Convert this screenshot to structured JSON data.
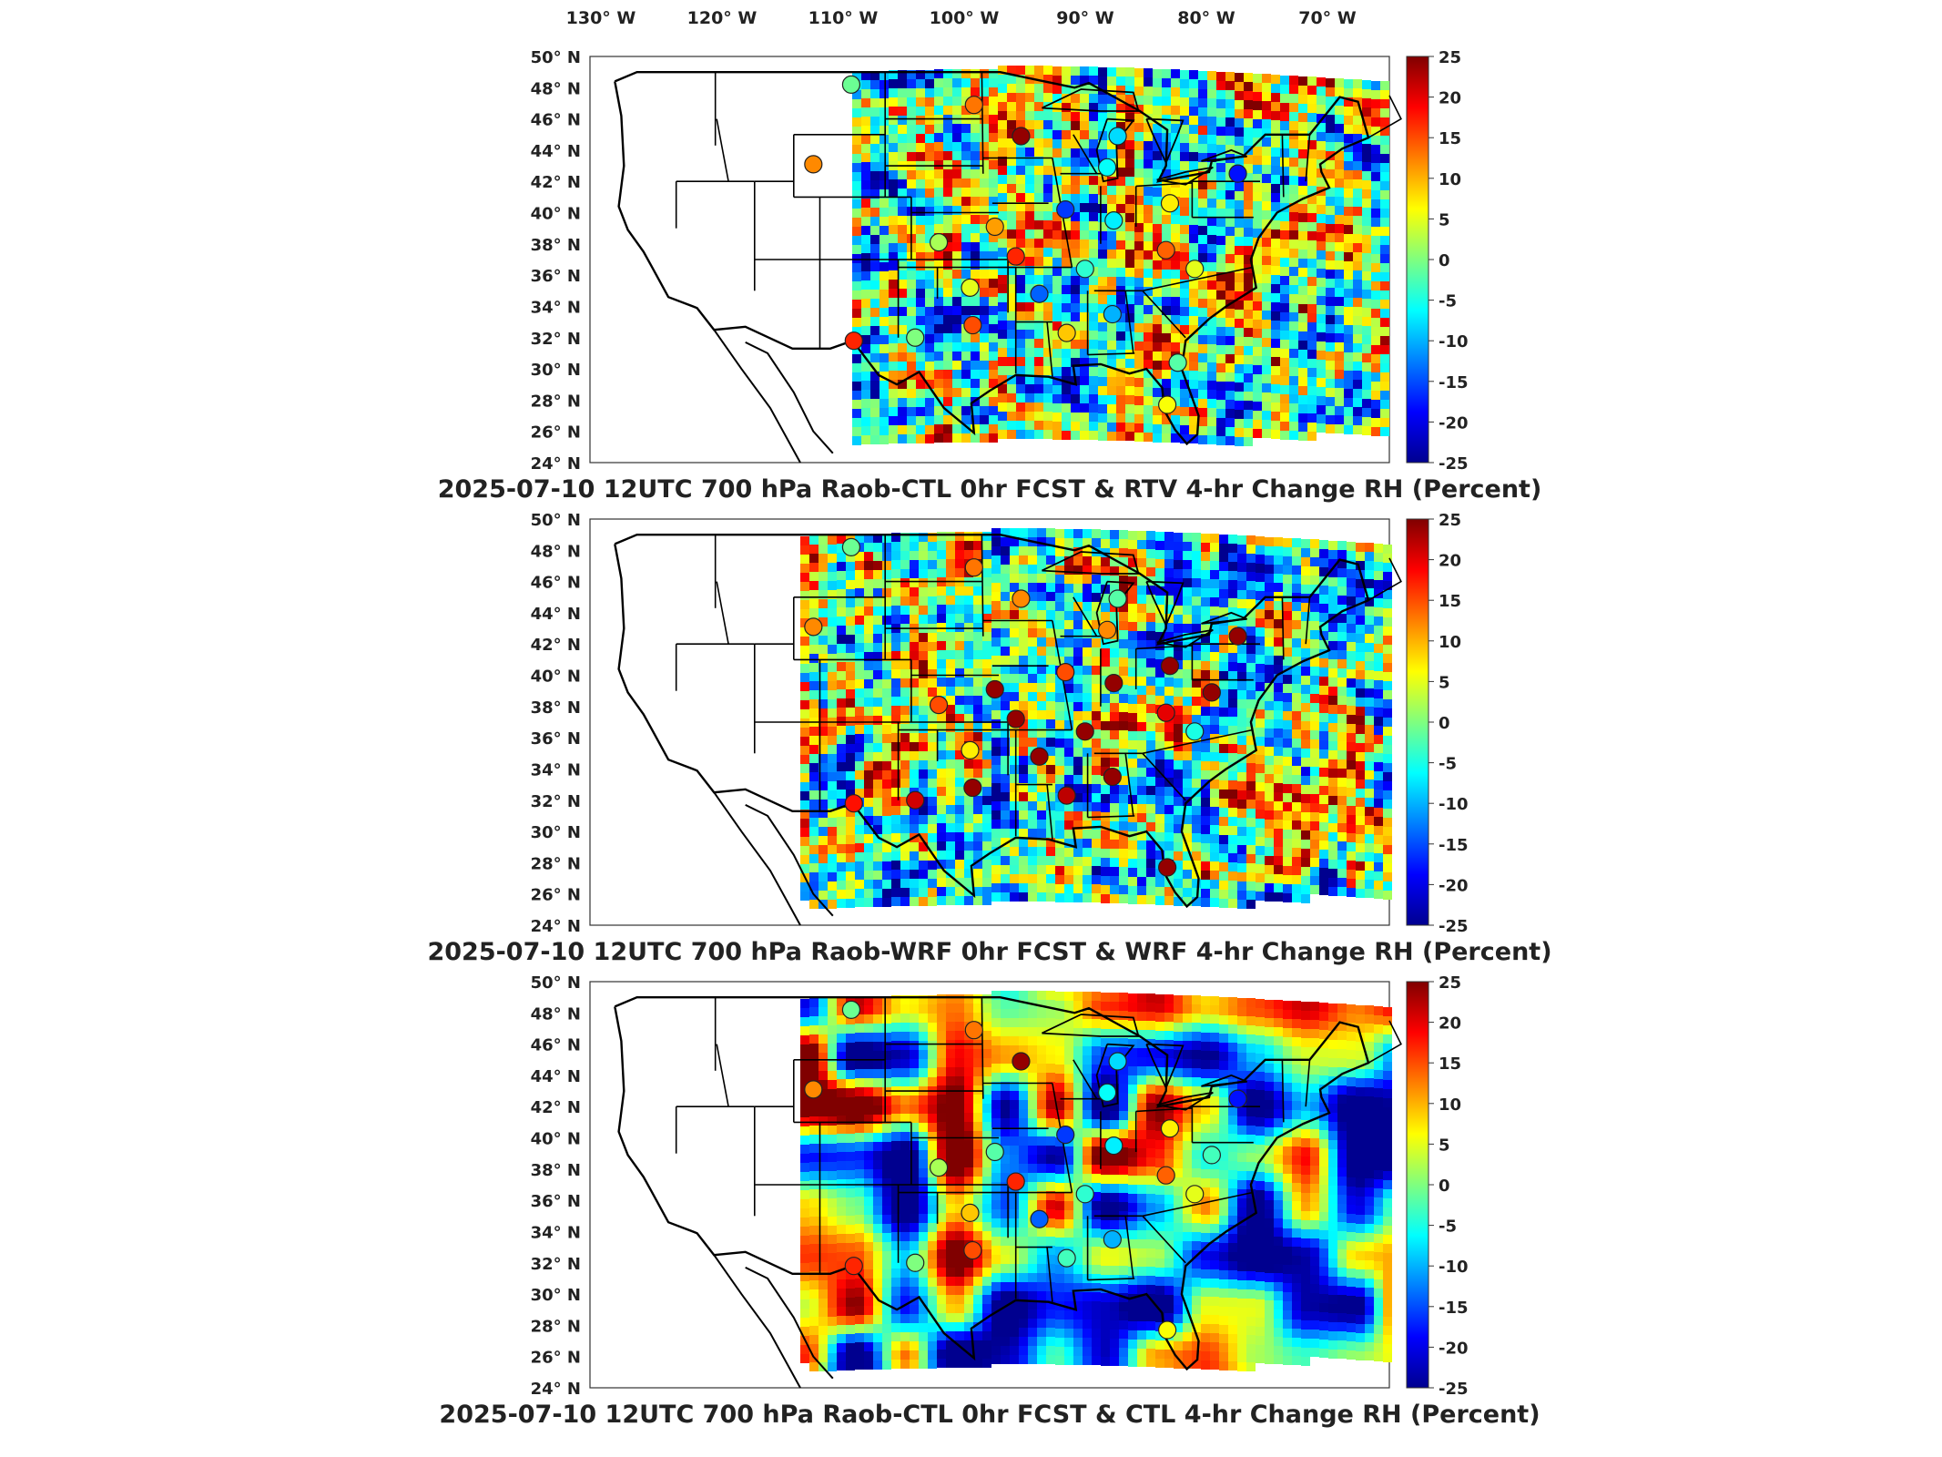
{
  "longitude_labels": [
    "130° W",
    "120° W",
    "110° W",
    "100° W",
    "90° W",
    "80° W",
    "70° W"
  ],
  "latitude_labels": [
    "50° N",
    "48° N",
    "46° N",
    "44° N",
    "42° N",
    "40° N",
    "38° N",
    "36° N",
    "34° N",
    "32° N",
    "30° N",
    "28° N",
    "26° N",
    "24° N"
  ],
  "colorbar_ticks": [
    "25",
    "20",
    "15",
    "10",
    "5",
    "0",
    "-5",
    "-10",
    "-15",
    "-20",
    "-25"
  ],
  "colorbar_range": [
    -25,
    25
  ],
  "colorbar_colors": [
    "#00008f",
    "#0000ff",
    "#007fff",
    "#00ffff",
    "#7fff7f",
    "#ffff00",
    "#ff7f00",
    "#ff0000",
    "#800000"
  ],
  "panels": [
    {
      "title": "2025-07-10 12UTC 700 hPa Raob-CTL 0hr FCST & RTV 4-hr Change RH (Percent)",
      "stations": [
        {
          "lon": -106.6,
          "lat": 48.2,
          "value": -1
        },
        {
          "lon": -97.2,
          "lat": 46.9,
          "value": 13
        },
        {
          "lon": -109.5,
          "lat": 43.1,
          "value": 12
        },
        {
          "lon": -93.6,
          "lat": 44.9,
          "value": 24
        },
        {
          "lon": -86.2,
          "lat": 44.9,
          "value": -8
        },
        {
          "lon": -87.0,
          "lat": 42.9,
          "value": -6
        },
        {
          "lon": -90.2,
          "lat": 40.2,
          "value": -16
        },
        {
          "lon": -86.5,
          "lat": 39.5,
          "value": -7
        },
        {
          "lon": -82.2,
          "lat": 40.6,
          "value": 7
        },
        {
          "lon": -77.0,
          "lat": 42.5,
          "value": -18
        },
        {
          "lon": -95.6,
          "lat": 39.1,
          "value": 11
        },
        {
          "lon": -99.9,
          "lat": 38.1,
          "value": 2
        },
        {
          "lon": -94.0,
          "lat": 37.2,
          "value": 17
        },
        {
          "lon": -88.7,
          "lat": 36.4,
          "value": -4
        },
        {
          "lon": -97.5,
          "lat": 35.2,
          "value": 5
        },
        {
          "lon": -92.2,
          "lat": 34.8,
          "value": -14
        },
        {
          "lon": -86.6,
          "lat": 33.5,
          "value": -10
        },
        {
          "lon": -90.1,
          "lat": 32.3,
          "value": 9
        },
        {
          "lon": -97.3,
          "lat": 32.8,
          "value": 15
        },
        {
          "lon": -101.7,
          "lat": 32.0,
          "value": 0
        },
        {
          "lon": -106.4,
          "lat": 31.8,
          "value": 17
        },
        {
          "lon": -82.5,
          "lat": 37.6,
          "value": 14
        },
        {
          "lon": -80.3,
          "lat": 36.4,
          "value": 5
        },
        {
          "lon": -81.6,
          "lat": 30.4,
          "value": -2
        },
        {
          "lon": -82.4,
          "lat": 27.7,
          "value": 6
        }
      ]
    },
    {
      "title": "2025-07-10 12UTC 700 hPa Raob-WRF 0hr FCST & WRF 4-hr Change RH (Percent)",
      "stations": [
        {
          "lon": -106.6,
          "lat": 48.2,
          "value": -1
        },
        {
          "lon": -97.2,
          "lat": 46.9,
          "value": 13
        },
        {
          "lon": -109.5,
          "lat": 43.1,
          "value": 12
        },
        {
          "lon": -93.6,
          "lat": 44.9,
          "value": 12
        },
        {
          "lon": -86.2,
          "lat": 44.9,
          "value": -2
        },
        {
          "lon": -87.0,
          "lat": 42.9,
          "value": 12
        },
        {
          "lon": -90.2,
          "lat": 40.2,
          "value": 15
        },
        {
          "lon": -86.5,
          "lat": 39.5,
          "value": 24
        },
        {
          "lon": -82.2,
          "lat": 40.6,
          "value": 24
        },
        {
          "lon": -77.0,
          "lat": 42.5,
          "value": 24
        },
        {
          "lon": -95.6,
          "lat": 39.1,
          "value": 24
        },
        {
          "lon": -99.9,
          "lat": 38.1,
          "value": 15
        },
        {
          "lon": -94.0,
          "lat": 37.2,
          "value": 24
        },
        {
          "lon": -88.7,
          "lat": 36.4,
          "value": 24
        },
        {
          "lon": -97.5,
          "lat": 35.2,
          "value": 7
        },
        {
          "lon": -92.2,
          "lat": 34.8,
          "value": 24
        },
        {
          "lon": -86.6,
          "lat": 33.5,
          "value": 24
        },
        {
          "lon": -90.1,
          "lat": 32.3,
          "value": 22
        },
        {
          "lon": -97.3,
          "lat": 32.8,
          "value": 24
        },
        {
          "lon": -101.7,
          "lat": 32.0,
          "value": 21
        },
        {
          "lon": -106.4,
          "lat": 31.8,
          "value": 18
        },
        {
          "lon": -82.5,
          "lat": 37.6,
          "value": 20
        },
        {
          "lon": -80.3,
          "lat": 36.4,
          "value": -5
        },
        {
          "lon": -79.0,
          "lat": 38.9,
          "value": 24
        },
        {
          "lon": -82.4,
          "lat": 27.7,
          "value": 24
        }
      ]
    },
    {
      "title": "2025-07-10 12UTC 700 hPa Raob-CTL 0hr FCST & CTL 4-hr Change RH (Percent)",
      "stations": [
        {
          "lon": -106.6,
          "lat": 48.2,
          "value": -1
        },
        {
          "lon": -97.2,
          "lat": 46.9,
          "value": 13
        },
        {
          "lon": -109.5,
          "lat": 43.1,
          "value": 12
        },
        {
          "lon": -93.6,
          "lat": 44.9,
          "value": 24
        },
        {
          "lon": -86.2,
          "lat": 44.9,
          "value": -8
        },
        {
          "lon": -87.0,
          "lat": 42.9,
          "value": -6
        },
        {
          "lon": -90.2,
          "lat": 40.2,
          "value": -16
        },
        {
          "lon": -86.5,
          "lat": 39.5,
          "value": -7
        },
        {
          "lon": -82.2,
          "lat": 40.6,
          "value": 7
        },
        {
          "lon": -77.0,
          "lat": 42.5,
          "value": -18
        },
        {
          "lon": -95.6,
          "lat": 39.1,
          "value": -2
        },
        {
          "lon": -99.9,
          "lat": 38.1,
          "value": 2
        },
        {
          "lon": -94.0,
          "lat": 37.2,
          "value": 17
        },
        {
          "lon": -88.7,
          "lat": 36.4,
          "value": -4
        },
        {
          "lon": -97.5,
          "lat": 35.2,
          "value": 9
        },
        {
          "lon": -92.2,
          "lat": 34.8,
          "value": -14
        },
        {
          "lon": -86.6,
          "lat": 33.5,
          "value": -10
        },
        {
          "lon": -90.1,
          "lat": 32.3,
          "value": -3
        },
        {
          "lon": -97.3,
          "lat": 32.8,
          "value": 15
        },
        {
          "lon": -101.7,
          "lat": 32.0,
          "value": 0
        },
        {
          "lon": -106.4,
          "lat": 31.8,
          "value": 17
        },
        {
          "lon": -82.5,
          "lat": 37.6,
          "value": 14
        },
        {
          "lon": -80.3,
          "lat": 36.4,
          "value": 5
        },
        {
          "lon": -79.0,
          "lat": 38.9,
          "value": -3
        },
        {
          "lon": -82.4,
          "lat": 27.7,
          "value": 6
        }
      ]
    }
  ]
}
